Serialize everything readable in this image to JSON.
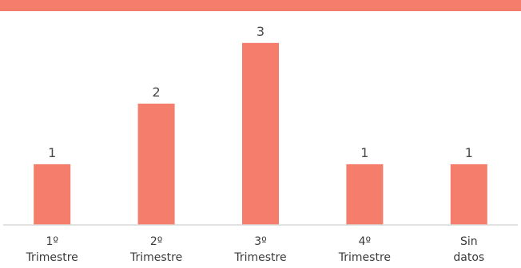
{
  "chart_data": {
    "type": "bar",
    "title": "",
    "xlabel": "",
    "ylabel": "",
    "categories": [
      [
        "1º",
        "Trimestre"
      ],
      [
        "2º",
        "Trimestre"
      ],
      [
        "3º",
        "Trimestre"
      ],
      [
        "4º",
        "Trimestre"
      ],
      [
        "Sin",
        "datos"
      ]
    ],
    "values": [
      1,
      2,
      3,
      1,
      1
    ],
    "ylim": [
      0,
      3.3
    ],
    "grid": false,
    "legend": "none",
    "bar_color": "#f47d6b",
    "accent_band_color": "#f47d6b"
  }
}
